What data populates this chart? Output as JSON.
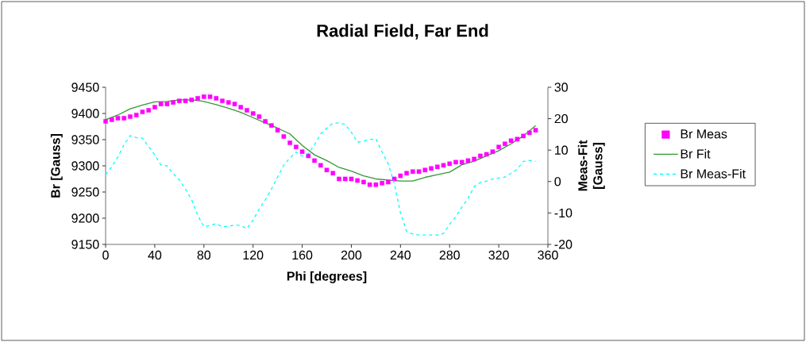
{
  "chart_data": {
    "type": "line",
    "title": "Radial Field, Far End",
    "xlabel": "Phi [degrees]",
    "ylabel": "Br [Gauss]",
    "y2label": "Meas-Fit [Gauss]",
    "xlim": [
      0,
      360
    ],
    "xticks": [
      0,
      40,
      80,
      120,
      160,
      200,
      240,
      280,
      320,
      360
    ],
    "ylim": [
      9150,
      9450
    ],
    "yticks": [
      9150,
      9200,
      9250,
      9300,
      9350,
      9400,
      9450
    ],
    "y2lim": [
      -20,
      30
    ],
    "y2ticks": [
      -20,
      -10,
      0,
      10,
      20,
      30
    ],
    "legend": "right",
    "series": [
      {
        "name": "Br Meas",
        "type": "scatter",
        "marker": "square",
        "color": "#ff00ff",
        "x": [
          0,
          5,
          10,
          15,
          20,
          25,
          30,
          35,
          40,
          45,
          50,
          55,
          60,
          65,
          70,
          75,
          80,
          85,
          90,
          95,
          100,
          105,
          110,
          115,
          120,
          125,
          130,
          135,
          140,
          145,
          150,
          155,
          160,
          165,
          170,
          175,
          180,
          185,
          190,
          195,
          200,
          205,
          210,
          215,
          220,
          225,
          230,
          235,
          240,
          245,
          250,
          255,
          260,
          265,
          270,
          275,
          280,
          285,
          290,
          295,
          300,
          305,
          310,
          315,
          320,
          325,
          330,
          335,
          340,
          345,
          350
        ],
        "values": [
          9385,
          9388,
          9391,
          9391,
          9394,
          9397,
          9403,
          9406,
          9412,
          9418,
          9418,
          9421,
          9424,
          9424,
          9426,
          9429,
          9432,
          9432,
          9429,
          9424,
          9421,
          9418,
          9412,
          9406,
          9400,
          9394,
          9385,
          9377,
          9368,
          9356,
          9344,
          9336,
          9327,
          9319,
          9310,
          9301,
          9292,
          9286,
          9275,
          9275,
          9275,
          9272,
          9269,
          9264,
          9264,
          9267,
          9269,
          9275,
          9281,
          9286,
          9289,
          9289,
          9292,
          9295,
          9298,
          9301,
          9304,
          9307,
          9307,
          9310,
          9313,
          9319,
          9322,
          9327,
          9336,
          9342,
          9348,
          9351,
          9357,
          9363,
          9368
        ]
      },
      {
        "name": "Br Fit",
        "marker": "none",
        "line_style": "solid",
        "color": "#339933",
        "x": [
          0,
          10,
          20,
          30,
          40,
          50,
          60,
          70,
          80,
          90,
          100,
          110,
          120,
          130,
          140,
          150,
          160,
          170,
          180,
          190,
          200,
          210,
          220,
          230,
          240,
          250,
          260,
          270,
          280,
          290,
          300,
          310,
          320,
          330,
          340,
          350
        ],
        "values": [
          9388,
          9397,
          9409,
          9416,
          9422,
          9423,
          9426,
          9426,
          9423,
          9417,
          9410,
          9402,
          9392,
          9382,
          9372,
          9361,
          9339,
          9321,
          9310,
          9297,
          9290,
          9281,
          9275,
          9273,
          9271,
          9271,
          9278,
          9283,
          9288,
          9302,
          9309,
          9319,
          9329,
          9342,
          9357,
          9377
        ]
      },
      {
        "name": "Br Meas-Fit",
        "axis": "y2",
        "marker": "none",
        "line_style": "dashed",
        "color": "#00ffff",
        "x": [
          0,
          5,
          10,
          15,
          20,
          25,
          30,
          35,
          40,
          45,
          50,
          55,
          60,
          65,
          70,
          75,
          80,
          85,
          90,
          95,
          100,
          105,
          110,
          115,
          120,
          125,
          130,
          135,
          140,
          145,
          150,
          155,
          160,
          165,
          170,
          175,
          180,
          185,
          190,
          195,
          200,
          205,
          210,
          215,
          220,
          225,
          230,
          235,
          240,
          245,
          250,
          255,
          260,
          265,
          270,
          275,
          280,
          285,
          290,
          295,
          300,
          305,
          310,
          315,
          320,
          325,
          330,
          335,
          340,
          345,
          350
        ],
        "values": [
          2.2,
          4.7,
          7.9,
          11.7,
          14.6,
          14.0,
          13.8,
          11.1,
          8.5,
          5.3,
          5.0,
          2.5,
          0.5,
          -2.4,
          -5.8,
          -10.8,
          -14.4,
          -14.0,
          -13.4,
          -14.4,
          -14.2,
          -13.8,
          -14.0,
          -15.0,
          -12.3,
          -8.7,
          -5.8,
          -2.4,
          1.4,
          5.2,
          7.5,
          9.4,
          8.1,
          9.0,
          11.7,
          15.1,
          17.0,
          18.6,
          18.6,
          18.2,
          15.7,
          12.5,
          12.9,
          13.4,
          13.6,
          9.4,
          5.6,
          -0.7,
          -10.0,
          -15.9,
          -16.7,
          -17.0,
          -17.0,
          -17.0,
          -17.0,
          -16.5,
          -13.6,
          -11.2,
          -8.1,
          -5.4,
          -1.6,
          -0.3,
          0.1,
          0.8,
          1.1,
          1.4,
          2.6,
          3.9,
          6.4,
          6.7,
          6.4
        ]
      }
    ]
  }
}
